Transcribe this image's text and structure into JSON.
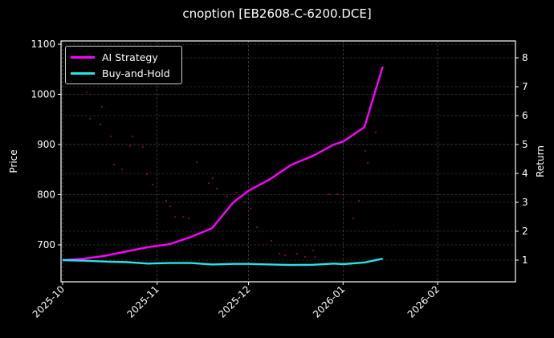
{
  "chart_data": {
    "type": "line",
    "title": "cnoption [EB2608-C-6200.DCE]",
    "xlabel": "",
    "ylabel_left": "Price",
    "ylabel_right": "Return",
    "x_ticks": [
      "2025-10",
      "2025-11",
      "2025-12",
      "2026-01",
      "2026-02"
    ],
    "y_left_ticks": [
      700,
      800,
      900,
      1000,
      1100
    ],
    "y_right_ticks": [
      1,
      2,
      3,
      4,
      5,
      6,
      7,
      8
    ],
    "y_left_range": [
      627,
      1107
    ],
    "y_right_range": [
      0.5,
      8.5
    ],
    "grid": true,
    "legend_position": "upper left",
    "x": [
      "2025-10-01",
      "2025-10-08",
      "2025-10-15",
      "2025-10-22",
      "2025-10-29",
      "2025-11-05",
      "2025-11-12",
      "2025-11-19",
      "2025-11-26",
      "2025-12-01",
      "2025-12-08",
      "2025-12-15",
      "2025-12-22",
      "2025-12-29",
      "2026-01-01",
      "2026-01-08",
      "2026-01-14"
    ],
    "series": [
      {
        "name": "AI Strategy",
        "color": "#ff00ff",
        "axis": "right",
        "values": [
          1.0,
          1.05,
          1.15,
          1.3,
          1.45,
          1.55,
          1.8,
          2.1,
          3.0,
          3.4,
          3.8,
          4.3,
          4.6,
          5.0,
          5.1,
          5.6,
          7.7
        ]
      },
      {
        "name": "Buy-and-Hold",
        "color": "#22e5e5",
        "axis": "right",
        "values": [
          1.0,
          0.98,
          0.95,
          0.93,
          0.88,
          0.9,
          0.9,
          0.85,
          0.87,
          0.87,
          0.85,
          0.83,
          0.84,
          0.88,
          0.86,
          0.92,
          1.05
        ]
      }
    ],
    "price_scatter": {
      "name": "Price",
      "color": "#a01030",
      "axis": "left",
      "approx_range": [
        680,
        1000
      ]
    }
  },
  "legend": {
    "items": [
      {
        "label": "AI Strategy",
        "color": "#ff00ff"
      },
      {
        "label": "Buy-and-Hold",
        "color": "#22e5e5"
      }
    ]
  }
}
